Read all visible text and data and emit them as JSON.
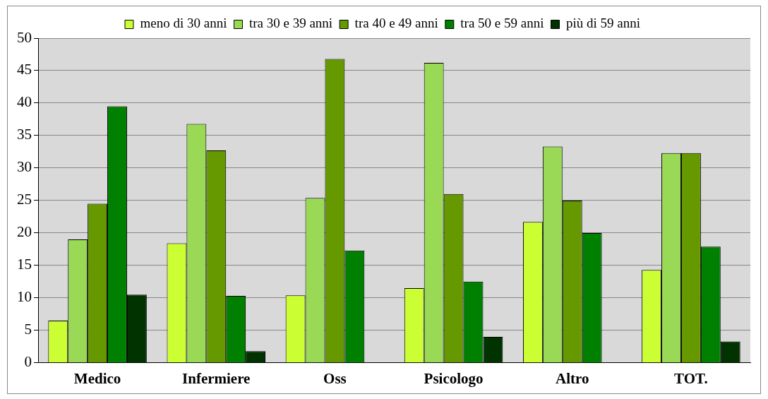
{
  "chart_data": {
    "type": "bar",
    "categories": [
      "Medico",
      "Infermiere",
      "Oss",
      "Psicologo",
      "Altro",
      "TOT."
    ],
    "series": [
      {
        "name": "meno di 30 anni",
        "color": "#ccff33",
        "values": [
          6.5,
          18.4,
          10.4,
          11.5,
          21.7,
          14.3
        ]
      },
      {
        "name": "tra 30 e 39 anni",
        "color": "#99d955",
        "values": [
          19,
          36.8,
          25.4,
          46.2,
          33.3,
          32.3
        ]
      },
      {
        "name": "tra 40 e 49 anni",
        "color": "#669900",
        "values": [
          24.5,
          32.7,
          46.8,
          26,
          25,
          32.3
        ]
      },
      {
        "name": "tra 50 e 59 anni",
        "color": "#008000",
        "values": [
          39.5,
          10.3,
          17.3,
          12.5,
          20,
          17.9
        ]
      },
      {
        "name": "più di 59 anni",
        "color": "#003300",
        "values": [
          10.5,
          1.8,
          0,
          4,
          0,
          3.3
        ]
      }
    ],
    "ylim": [
      0,
      50
    ],
    "yticks": [
      0,
      5,
      10,
      15,
      20,
      25,
      30,
      35,
      40,
      45,
      50
    ],
    "grid": "y",
    "legend": "top"
  }
}
